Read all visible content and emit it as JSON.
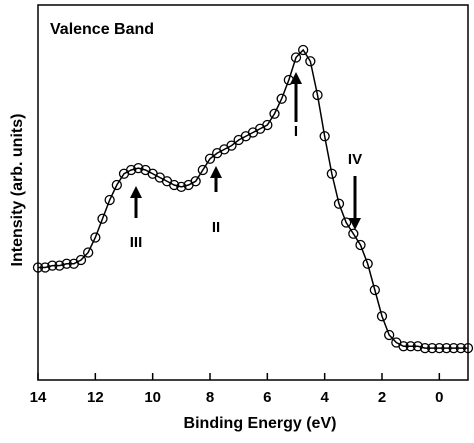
{
  "chart_data": {
    "type": "scatter-line",
    "title": "Valence Band",
    "x_label": "Binding Energy (eV)",
    "y_label": "Intensity (arb. units)",
    "x": [
      14,
      13.75,
      13.5,
      13.25,
      13,
      12.75,
      12.5,
      12.25,
      12,
      11.75,
      11.5,
      11.25,
      11,
      10.75,
      10.5,
      10.25,
      10,
      9.75,
      9.5,
      9.25,
      9,
      8.75,
      8.5,
      8.25,
      8,
      7.75,
      7.5,
      7.25,
      7,
      6.75,
      6.5,
      6.25,
      6,
      5.75,
      5.5,
      5.25,
      5,
      4.75,
      4.5,
      4.25,
      4,
      3.75,
      3.5,
      3.25,
      3,
      2.75,
      2.5,
      2.25,
      2,
      1.75,
      1.5,
      1.25,
      1,
      0.75,
      0.5,
      0.25,
      0,
      -0.25,
      -0.5,
      -0.75,
      -1
    ],
    "values": [
      30,
      30,
      30.5,
      30.5,
      31,
      31,
      32,
      34,
      38,
      43,
      48,
      52,
      55,
      56,
      56.5,
      56,
      55,
      54,
      53,
      52,
      51.5,
      52,
      53,
      56,
      59,
      60.5,
      61.5,
      62.5,
      64,
      65,
      66,
      67,
      68,
      71,
      75,
      80,
      86,
      88,
      85,
      76,
      65,
      55,
      47,
      42,
      39,
      36,
      31,
      24,
      17,
      12,
      10,
      9,
      9,
      9,
      8.5,
      8.5,
      8.5,
      8.5,
      8.5,
      8.5,
      8.5
    ],
    "color": "#000000",
    "xlim": [
      14,
      -1
    ],
    "xticks": [
      14,
      12,
      10,
      8,
      6,
      4,
      2,
      0
    ],
    "ylim": [
      0,
      100
    ],
    "annotations": [
      "I",
      "II",
      "III",
      "IV"
    ]
  }
}
